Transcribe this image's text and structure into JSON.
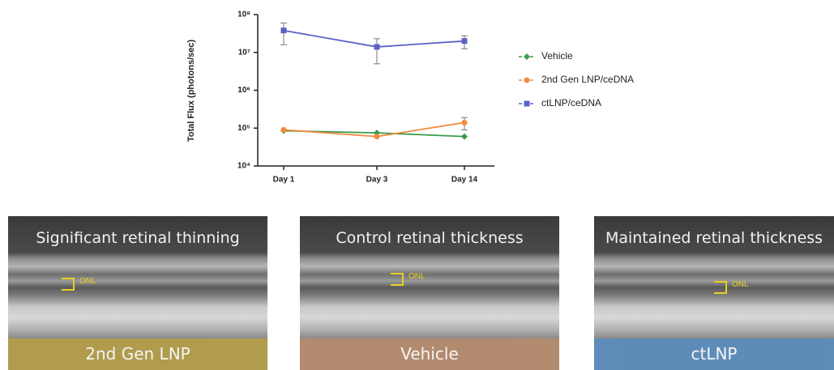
{
  "chart_data": {
    "type": "line",
    "y_label": "Total Flux (photons/sec)",
    "categories": [
      "Day 1",
      "Day 3",
      "Day 14"
    ],
    "log_y": true,
    "ylim": [
      10000,
      100000000
    ],
    "yticks": [
      {
        "value": 10000,
        "label": "10⁴"
      },
      {
        "value": 100000,
        "label": "10⁵"
      },
      {
        "value": 1000000,
        "label": "10⁶"
      },
      {
        "value": 10000000,
        "label": "10⁷"
      },
      {
        "value": 100000000,
        "label": "10⁸"
      }
    ],
    "legend": "right",
    "series": [
      {
        "name": "Vehicle",
        "color": "#3a9a4a",
        "marker": "diamond",
        "values": [
          85000,
          75000,
          60000
        ]
      },
      {
        "name": "2nd Gen LNP/ceDNA",
        "color": "#f08a3c",
        "marker": "circle",
        "values": [
          90000,
          60000,
          140000
        ],
        "errors": [
          null,
          null,
          50000
        ]
      },
      {
        "name": "ctLNP/ceDNA",
        "color": "#5a62c8",
        "marker": "square",
        "values": [
          38000000,
          14000000,
          20000000
        ],
        "errors": [
          22000000,
          9000000,
          7500000
        ]
      }
    ]
  },
  "panels": [
    {
      "caption": "Significant retinal thinning",
      "marker": "ONL",
      "label": "2nd Gen LNP",
      "color": "#b59d48"
    },
    {
      "caption": "Control retinal thickness",
      "marker": "ONL",
      "label": "Vehicle",
      "color": "#b68b6c"
    },
    {
      "caption": "Maintained retinal thickness",
      "marker": "ONL",
      "label": "ctLNP",
      "color": "#5b8dbd"
    }
  ]
}
